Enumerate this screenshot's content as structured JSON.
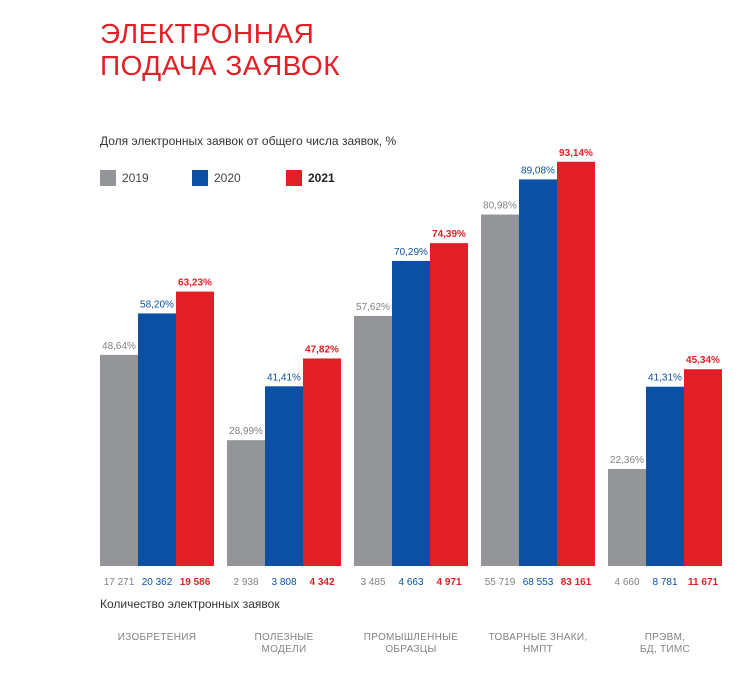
{
  "title_lines": [
    "ЭЛЕКТРОННАЯ",
    "ПОДАЧА ЗАЯВОК"
  ],
  "subtitle": "Доля электронных заявок от общего числа заявок, %",
  "count_caption": "Количество электронных заявок",
  "colors": {
    "2019": "#939598",
    "2020": "#0b50a2",
    "2021": "#e21e26",
    "title": "#e21e26"
  },
  "legend": [
    {
      "label": "2019",
      "color": "#939598",
      "bold": false
    },
    {
      "label": "2020",
      "color": "#0b50a2",
      "bold": false
    },
    {
      "label": "2021",
      "color": "#e21e26",
      "bold": true
    }
  ],
  "chart_data": {
    "type": "bar",
    "ylim": [
      0,
      100
    ],
    "categories": [
      [
        "ИЗОБРЕТЕНИЯ"
      ],
      [
        "ПОЛЕЗНЫЕ",
        "МОДЕЛИ"
      ],
      [
        "ПРОМЫШЛЕННЫЕ",
        "ОБРАЗЦЫ"
      ],
      [
        "ТОВАРНЫЕ ЗНАКИ,",
        "НМПТ"
      ],
      [
        "ПРЭВМ,",
        "БД, ТИМС"
      ]
    ],
    "series": [
      {
        "name": "2019",
        "values": [
          48.64,
          28.99,
          57.62,
          80.98,
          22.36
        ],
        "labels": [
          "48,64%",
          "28,99%",
          "57,62%",
          "80,98%",
          "22,36%"
        ],
        "counts": [
          "17 271",
          "2 938",
          "3 485",
          "55 719",
          "4 660"
        ]
      },
      {
        "name": "2020",
        "values": [
          58.2,
          41.41,
          70.29,
          89.08,
          41.31
        ],
        "labels": [
          "58,20%",
          "41,41%",
          "70,29%",
          "89,08%",
          "41,31%"
        ],
        "counts": [
          "20 362",
          "3 808",
          "4 663",
          "68 553",
          "8 781"
        ]
      },
      {
        "name": "2021",
        "values": [
          63.23,
          47.82,
          74.39,
          93.14,
          45.34
        ],
        "labels": [
          "63,23%",
          "47,82%",
          "74,39%",
          "93,14%",
          "45,34%"
        ],
        "counts": [
          "19 586",
          "4 342",
          "4 971",
          "83 161",
          "11 671"
        ]
      }
    ]
  }
}
